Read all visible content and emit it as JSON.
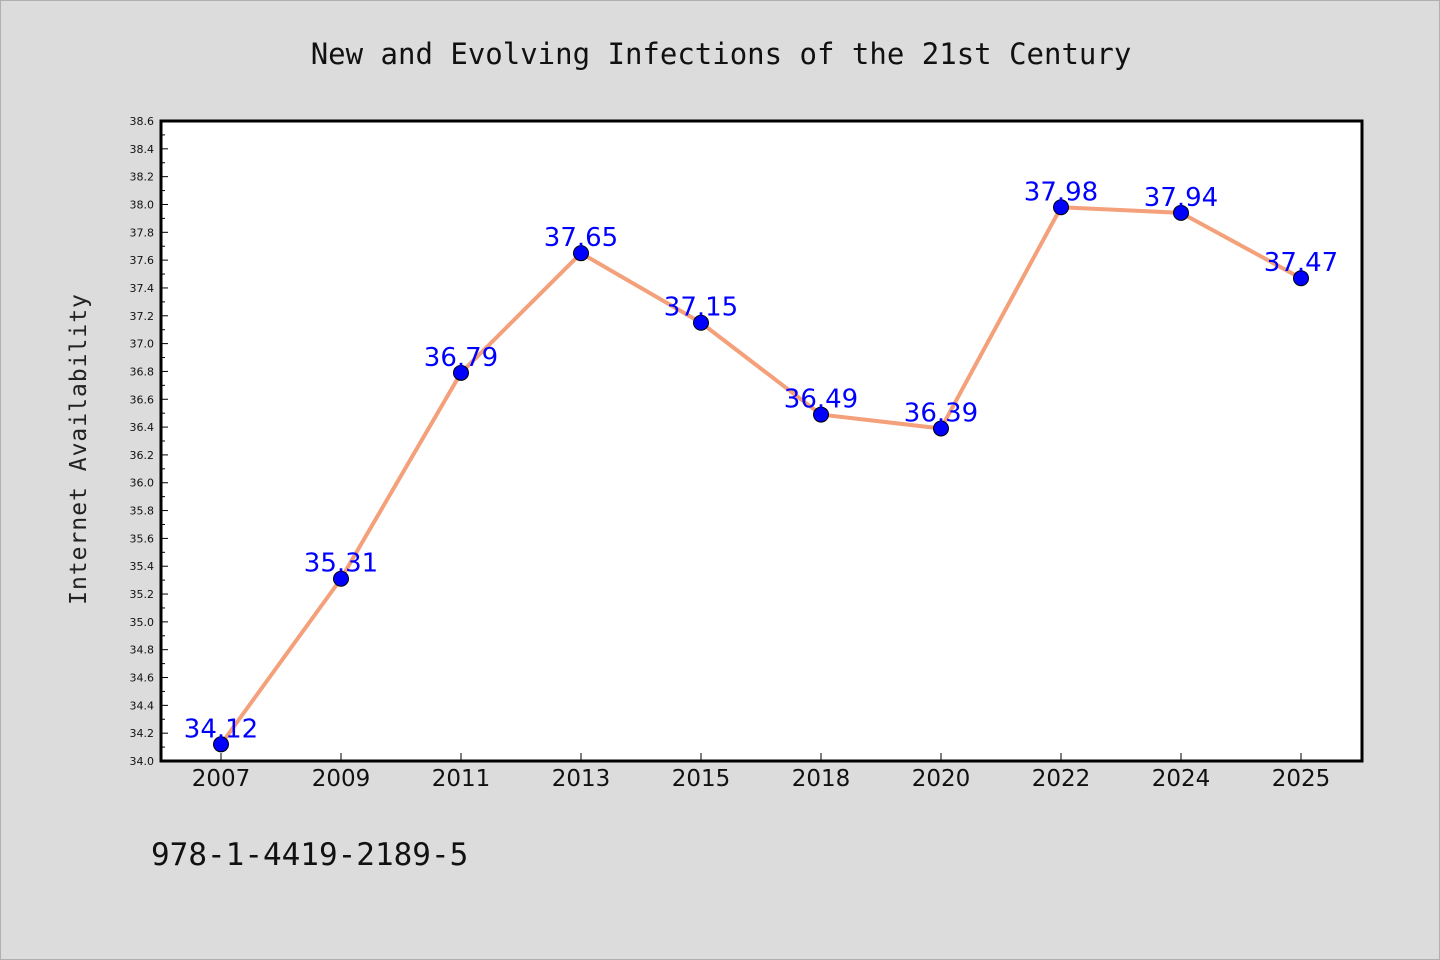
{
  "footer_code": "978-1-4419-2189-5",
  "colors": {
    "background": "#dcdcdc",
    "plot_background": "#ffffff",
    "line": "#f4a07a",
    "marker": "#0000ff",
    "data_label": "#0000ff"
  },
  "chart_data": {
    "type": "line",
    "title": "New and Evolving Infections of the 21st Century",
    "xlabel": "",
    "ylabel": "Internet Availability",
    "categories": [
      "2007",
      "2009",
      "2011",
      "2013",
      "2015",
      "2018",
      "2020",
      "2022",
      "2024",
      "2025"
    ],
    "series": [
      {
        "values": [
          34.12,
          35.31,
          36.79,
          37.65,
          37.15,
          36.49,
          36.39,
          37.98,
          37.94,
          37.47
        ],
        "labels": [
          "34.12",
          "35.31",
          "36.79",
          "37.65",
          "37.15",
          "36.49",
          "36.39",
          "37.98",
          "37.94",
          "37.47"
        ]
      }
    ],
    "ylim": [
      34.0,
      38.6
    ],
    "yticks": [
      "34.0",
      "34.2",
      "34.4",
      "34.6",
      "34.8",
      "35.0",
      "35.2",
      "35.4",
      "35.6",
      "35.8",
      "36.0",
      "36.2",
      "36.4",
      "36.6",
      "36.8",
      "37.0",
      "37.2",
      "37.4",
      "37.6",
      "37.8",
      "38.0",
      "38.2",
      "38.4",
      "38.6"
    ],
    "grid": false,
    "legend": "none",
    "markers": true,
    "data_labels": true
  }
}
